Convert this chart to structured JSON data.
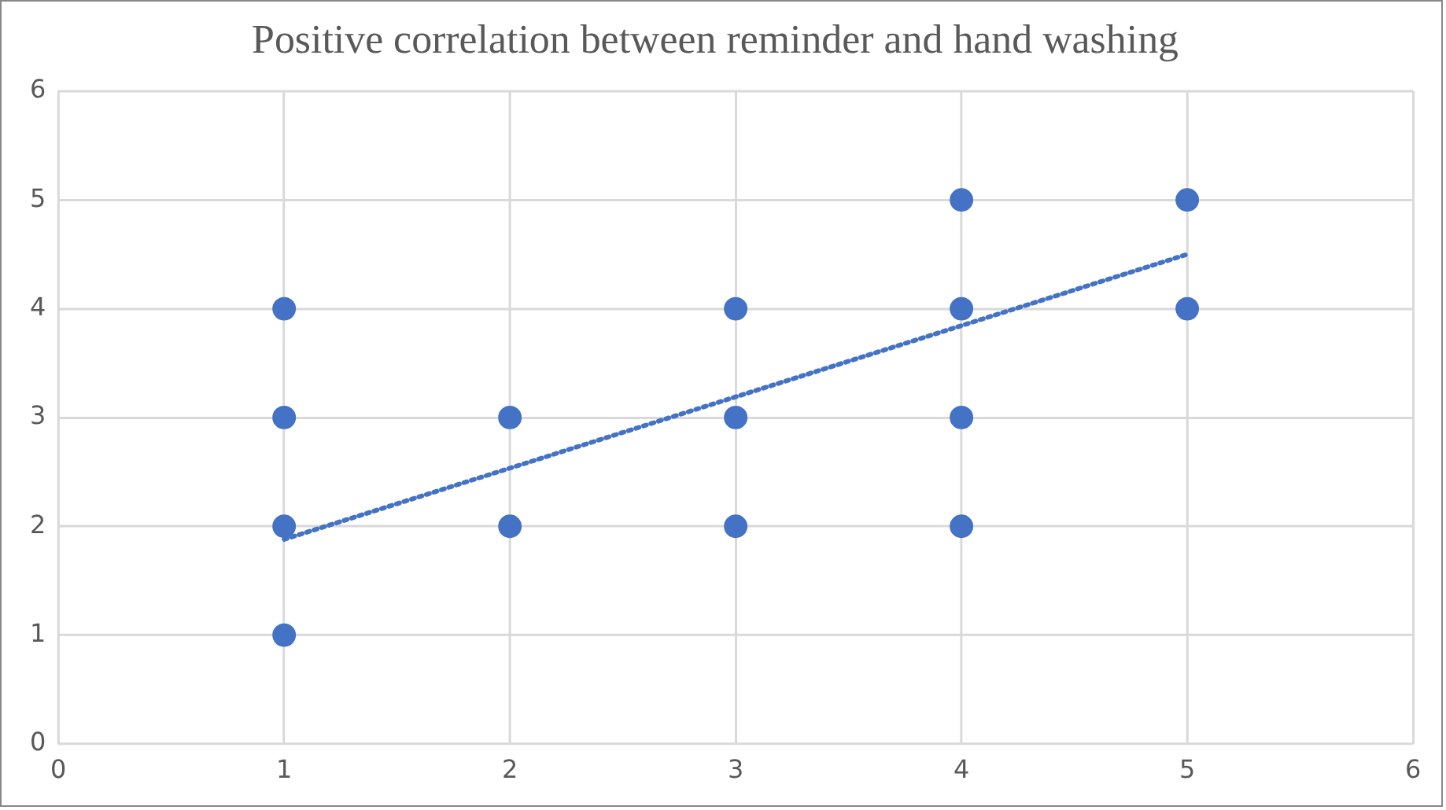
{
  "chart_data": {
    "type": "scatter",
    "title": "Positive correlation between reminder and hand washing",
    "xlim": [
      0,
      6
    ],
    "xticks": [
      0,
      1,
      2,
      3,
      4,
      5,
      6
    ],
    "ylim": [
      0,
      6
    ],
    "yticks": [
      0,
      1,
      2,
      3,
      4,
      5,
      6
    ],
    "grid": true,
    "legend": false,
    "series": [
      {
        "type": "scatter",
        "color": "#4472c4",
        "marker": "circle",
        "x": [
          1,
          1,
          1,
          1,
          2,
          2,
          3,
          3,
          3,
          4,
          4,
          4,
          4,
          5,
          5
        ],
        "values": [
          1,
          2,
          3,
          4,
          2,
          3,
          2,
          3,
          4,
          2,
          3,
          4,
          5,
          4,
          5
        ]
      },
      {
        "type": "line",
        "color": "#4472c4",
        "marker": "none",
        "line_style": "dotted",
        "x": [
          1,
          5
        ],
        "values": [
          1.88,
          4.5
        ]
      }
    ]
  }
}
